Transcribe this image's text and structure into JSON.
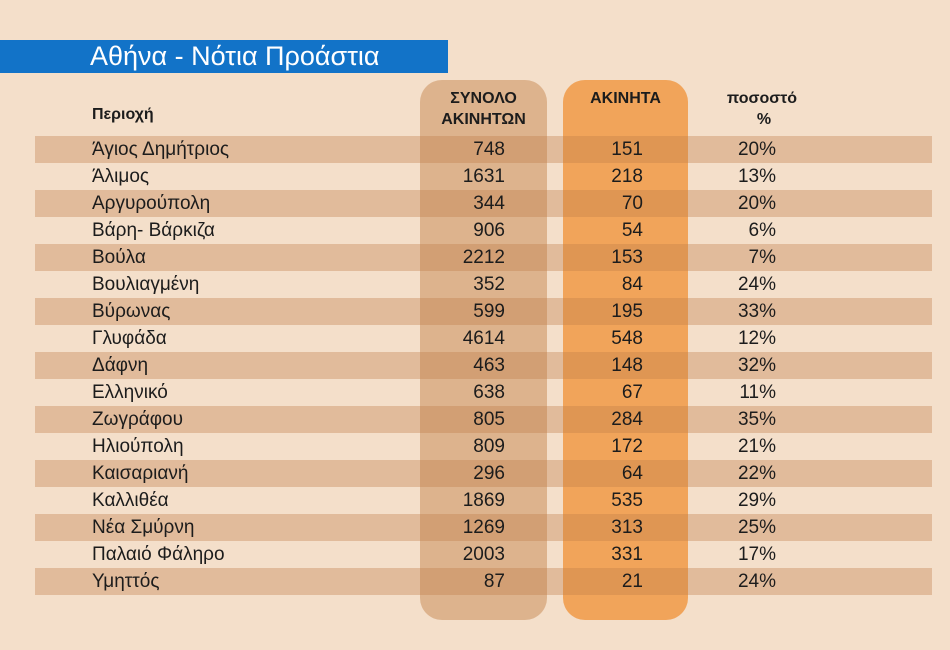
{
  "title": "Αθήνα - Νότια Προάστια",
  "headers": {
    "region": "Περιοχή",
    "total_line1": "ΣΥΝΟΛΟ",
    "total_line2": "ΑΚΙΝΗΤΩΝ",
    "vacant": "ΑΚΙΝΗΤΑ",
    "pct_line1": "ποσοστό",
    "pct_line2": "%"
  },
  "colors": {
    "title_bar": "#1273c8",
    "background": "#f4dfca",
    "total_band": "#d6a67c",
    "vacant_band": "#f09e50"
  },
  "chart_data": {
    "type": "table",
    "columns": [
      "Περιοχή",
      "ΣΥΝΟΛΟ ΑΚΙΝΗΤΩΝ",
      "ΑΚΙΝΗΤΑ",
      "ποσοστό %"
    ],
    "rows": [
      {
        "region": "Άγιος Δημήτριος",
        "total": "748",
        "vacant": "151",
        "pct": "20%"
      },
      {
        "region": "Άλιμος",
        "total": "1631",
        "vacant": "218",
        "pct": "13%"
      },
      {
        "region": "Αργυρούπολη",
        "total": "344",
        "vacant": "70",
        "pct": "20%"
      },
      {
        "region": "Βάρη- Βάρκιζα",
        "total": "906",
        "vacant": "54",
        "pct": "6%"
      },
      {
        "region": "Βούλα",
        "total": "2212",
        "vacant": "153",
        "pct": "7%"
      },
      {
        "region": "Βουλιαγμένη",
        "total": "352",
        "vacant": "84",
        "pct": "24%"
      },
      {
        "region": "Βύρωνας",
        "total": "599",
        "vacant": "195",
        "pct": "33%"
      },
      {
        "region": "Γλυφάδα",
        "total": "4614",
        "vacant": "548",
        "pct": "12%"
      },
      {
        "region": "Δάφνη",
        "total": "463",
        "vacant": "148",
        "pct": "32%"
      },
      {
        "region": "Ελληνικό",
        "total": "638",
        "vacant": "67",
        "pct": "11%"
      },
      {
        "region": "Ζωγράφου",
        "total": "805",
        "vacant": "284",
        "pct": "35%"
      },
      {
        "region": "Ηλιούπολη",
        "total": "809",
        "vacant": "172",
        "pct": "21%"
      },
      {
        "region": "Καισαριανή",
        "total": "296",
        "vacant": "64",
        "pct": "22%"
      },
      {
        "region": "Καλλιθέα",
        "total": "1869",
        "vacant": "535",
        "pct": "29%"
      },
      {
        "region": "Νέα Σμύρνη",
        "total": "1269",
        "vacant": "313",
        "pct": "25%"
      },
      {
        "region": "Παλαιό Φάληρο",
        "total": "2003",
        "vacant": "331",
        "pct": "17%"
      },
      {
        "region": "Υμηττός",
        "total": "87",
        "vacant": "21",
        "pct": "24%"
      }
    ]
  }
}
